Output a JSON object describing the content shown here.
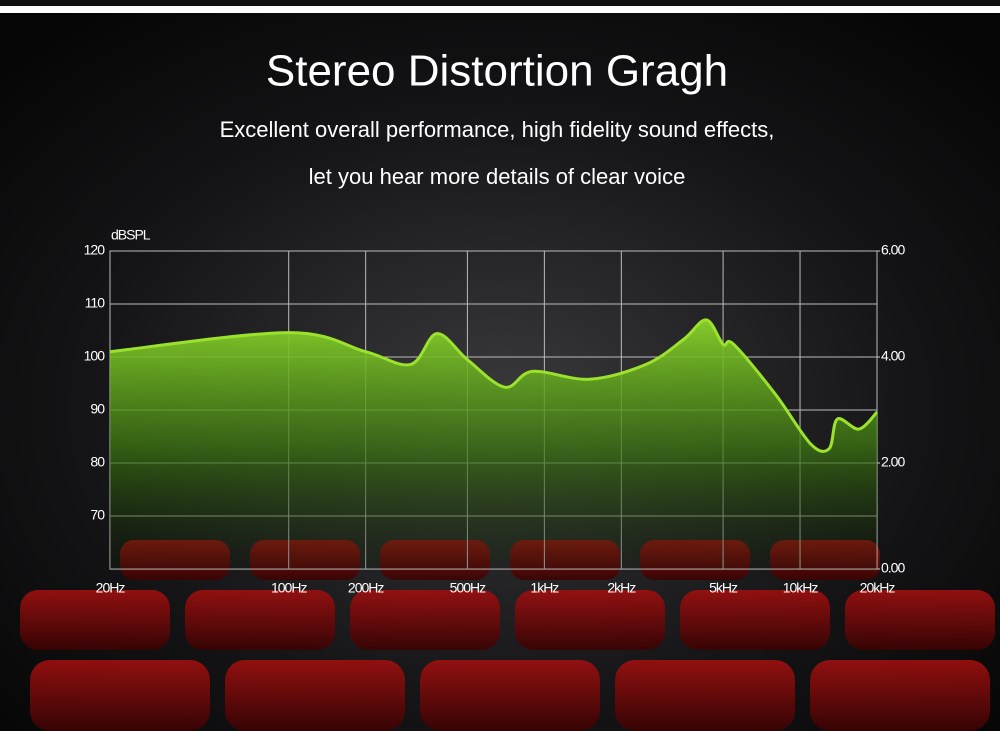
{
  "chart_data": {
    "type": "area",
    "title": "Stereo Distortion Gragh",
    "subtitle": [
      "Excellent overall performance, high fidelity sound effects,",
      "let you hear more details of clear voice"
    ],
    "y_label": "dBSPL",
    "x": [
      20,
      100,
      200,
      300,
      380,
      500,
      700,
      900,
      1500,
      2500,
      3500,
      4300,
      5000,
      5500,
      8000,
      11000,
      13000,
      14000,
      17000,
      20000
    ],
    "values": [
      101,
      104.6,
      101,
      98.6,
      104.4,
      99.5,
      94.3,
      97.3,
      95.8,
      98.6,
      103.3,
      107,
      102.4,
      102.4,
      93,
      83.6,
      82.7,
      88.3,
      86.4,
      89.6
    ],
    "color": "#9be22d",
    "xscale": "log",
    "xlim": [
      20,
      20000
    ],
    "xticks": [
      {
        "value": 20,
        "label": "20Hz"
      },
      {
        "value": 100,
        "label": "100Hz"
      },
      {
        "value": 200,
        "label": "200Hz"
      },
      {
        "value": 500,
        "label": "500Hz"
      },
      {
        "value": 1000,
        "label": "1kHz"
      },
      {
        "value": 2000,
        "label": "2kHz"
      },
      {
        "value": 5000,
        "label": "5kHz"
      },
      {
        "value": 10000,
        "label": "10kHz"
      },
      {
        "value": 20000,
        "label": "20kHz"
      }
    ],
    "ylim": [
      60,
      120
    ],
    "yticks": [
      120,
      110,
      100,
      90,
      80,
      70
    ],
    "y2lim": [
      0,
      6
    ],
    "y2ticks": [
      {
        "value": 6,
        "label": "6.00"
      },
      {
        "value": 4,
        "label": "4.00"
      },
      {
        "value": 2,
        "label": "2.00"
      },
      {
        "value": 0,
        "label": "0.00"
      }
    ],
    "grid": true
  }
}
